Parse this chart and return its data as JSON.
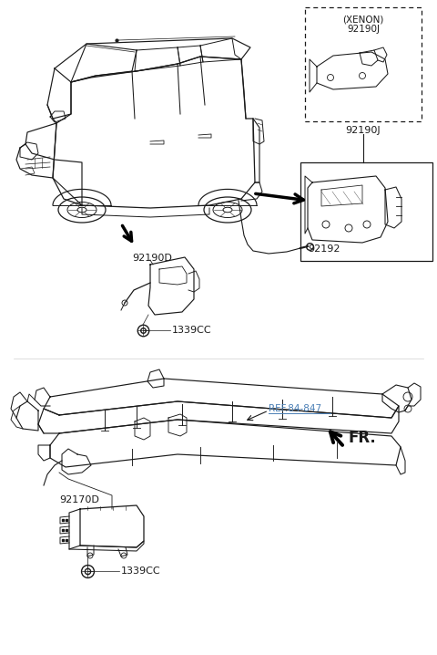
{
  "bg_color": "#ffffff",
  "line_color": "#1a1a1a",
  "ref_color": "#4a7fb5",
  "fig_width": 4.8,
  "fig_height": 7.18,
  "dpi": 100,
  "labels": {
    "xenon_title": "(XENON)",
    "xenon_part": "92190J",
    "xenon_label": "92190J",
    "bracket_part": "92192",
    "sensor_label": "92190D",
    "bolt_label1": "1339CC",
    "ecu_label": "92170D",
    "bolt_label2": "1339CC",
    "ref_label": "REF.84-847",
    "fr_label": "FR."
  }
}
